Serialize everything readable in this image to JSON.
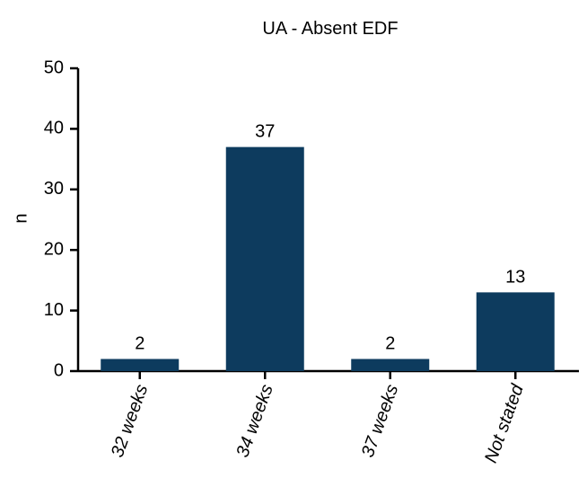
{
  "chart_data": {
    "type": "bar",
    "title": "UA - Absent EDF",
    "xlabel": "",
    "ylabel": "n",
    "categories": [
      "32 weeks",
      "34 weeks",
      "37 weeks",
      "Not stated"
    ],
    "values": [
      2,
      37,
      2,
      13
    ],
    "data_labels": [
      "2",
      "37",
      "2",
      "13"
    ],
    "ylim": [
      0,
      50
    ],
    "yticks": [
      0,
      10,
      20,
      30,
      40,
      50
    ],
    "grid": false,
    "legend": "none",
    "colors": {
      "bar": "#0d3b5e",
      "axis": "#000000"
    }
  }
}
